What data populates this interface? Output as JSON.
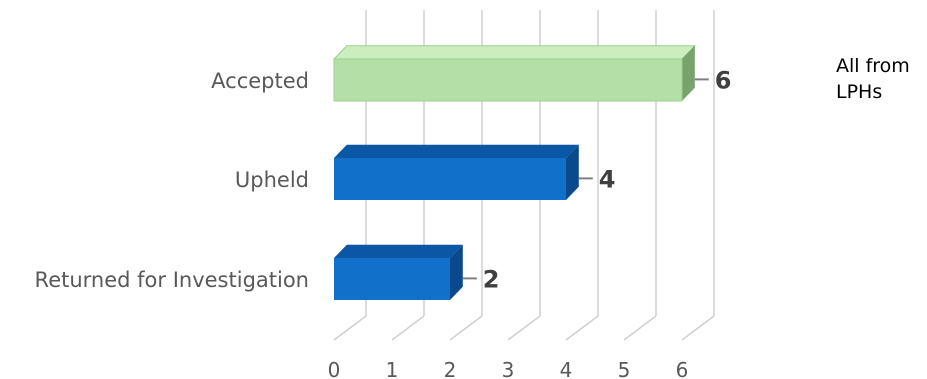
{
  "chart_data": {
    "type": "bar",
    "orientation": "horizontal",
    "style": "3d",
    "categories": [
      "Accepted",
      "Upheld",
      "Returned for Investigation"
    ],
    "values": [
      6,
      4,
      2
    ],
    "data_labels": [
      "6",
      "4",
      "2"
    ],
    "xlim": [
      0,
      6
    ],
    "ticks": [
      "0",
      "1",
      "2",
      "3",
      "4",
      "5",
      "6"
    ],
    "grid": true,
    "colors": {
      "highlight_front": "#b4e0a8",
      "highlight_top": "#cbeebf",
      "highlight_side": "#78a36c",
      "default_front": "#1170c9",
      "default_top": "#0b57a5",
      "default_side": "#0a4a8c",
      "grid": "#d0d0d0"
    },
    "highlight_index": 0
  },
  "note": {
    "line1": "All from",
    "line2": "LPHs"
  }
}
